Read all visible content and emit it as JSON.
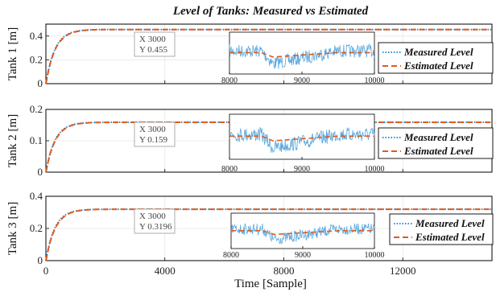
{
  "chart_data": {
    "type": "line",
    "title": "Level of Tanks: Measured vs Estimated",
    "xlabel": "Time [Sample]",
    "xlim": [
      0,
      15000
    ],
    "xticks": [
      "0",
      "4000",
      "8000",
      "12000"
    ],
    "colors": {
      "measured": "#2a8fd6",
      "estimated": "#e05a1c",
      "inset_noise": "#5aa8df"
    },
    "legend": {
      "measured": "Measured Level",
      "estimated": "Estimated Level",
      "placement": "right"
    },
    "subplots": [
      {
        "ylabel": "Tank 1 [m]",
        "ylim": [
          0,
          0.5
        ],
        "yticks": [
          "0",
          "0.2",
          "0.4"
        ],
        "final": 0.455,
        "time_constant": 300,
        "datatip": {
          "x": "X 3000",
          "y": "Y 0.455"
        },
        "inset": {
          "xlim": [
            8000,
            10000
          ],
          "ticks": [
            "8000",
            "9000",
            "10000"
          ],
          "dip": 0.05
        }
      },
      {
        "ylabel": "Tank 2 [m]",
        "ylim": [
          0,
          0.2
        ],
        "yticks": [
          "0",
          "0.1",
          "0.2"
        ],
        "final": 0.159,
        "time_constant": 300,
        "datatip": {
          "x": "X 3000",
          "y": "Y 0.159"
        },
        "inset": {
          "xlim": [
            8000,
            10000
          ],
          "ticks": [
            "8000",
            "9000",
            "10000"
          ],
          "dip": 0.004
        }
      },
      {
        "ylabel": "Tank 3 [m]",
        "ylim": [
          0,
          0.4
        ],
        "yticks": [
          "0",
          "0.2",
          "0.4"
        ],
        "final": 0.3196,
        "time_constant": 300,
        "datatip": {
          "x": "X 3000",
          "y": "Y 0.3196"
        },
        "inset": {
          "xlim": [
            8000,
            10000
          ],
          "ticks": [
            "8000",
            "9000",
            "10000"
          ],
          "dip": 0.05
        }
      }
    ]
  }
}
